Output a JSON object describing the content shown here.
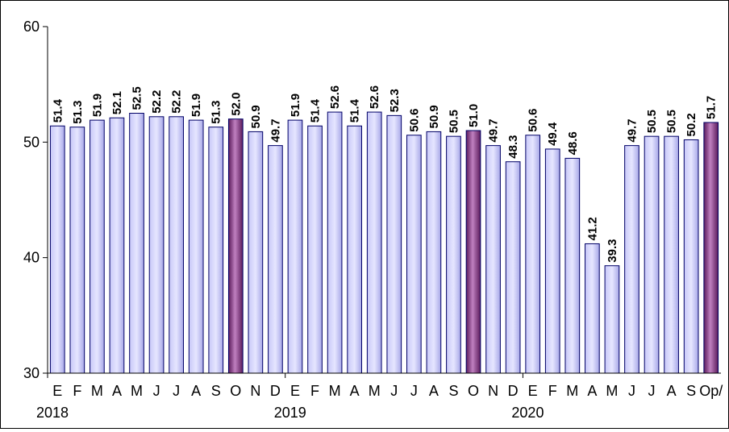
{
  "chart_data": {
    "type": "bar",
    "ylim": [
      30,
      60
    ],
    "yticks": [
      30,
      40,
      50,
      60
    ],
    "grid": false,
    "categories": [
      "E",
      "F",
      "M",
      "A",
      "M",
      "J",
      "J",
      "A",
      "S",
      "O",
      "N",
      "D",
      "E",
      "F",
      "M",
      "A",
      "M",
      "J",
      "J",
      "A",
      "S",
      "O",
      "N",
      "D",
      "E",
      "F",
      "M",
      "A",
      "M",
      "J",
      "J",
      "A",
      "S",
      "Op/"
    ],
    "year_labels": [
      {
        "label": "2018",
        "start_index": 0
      },
      {
        "label": "2019",
        "start_index": 12
      },
      {
        "label": "2020",
        "start_index": 24
      }
    ],
    "values": [
      51.4,
      51.3,
      51.9,
      52.1,
      52.5,
      52.2,
      52.2,
      51.9,
      51.3,
      52.0,
      50.9,
      49.7,
      51.9,
      51.4,
      52.6,
      51.4,
      52.6,
      52.3,
      50.6,
      50.9,
      50.5,
      51.0,
      49.7,
      48.3,
      50.6,
      49.4,
      48.6,
      41.2,
      39.3,
      49.7,
      50.5,
      50.5,
      50.2,
      51.7
    ],
    "data_labels": [
      "51.4",
      "51.3",
      "51.9",
      "52.1",
      "52.5",
      "52.2",
      "52.2",
      "51.9",
      "51.3",
      "52.0",
      "50.9",
      "49.7",
      "51.9",
      "51.4",
      "52.6",
      "51.4",
      "52.6",
      "52.3",
      "50.6",
      "50.9",
      "50.5",
      "51.0",
      "49.7",
      "48.3",
      "50.6",
      "49.4",
      "48.6",
      "41.2",
      "39.3",
      "49.7",
      "50.5",
      "50.5",
      "50.2",
      "51.7"
    ],
    "highlight_indices": [
      9,
      21,
      33
    ],
    "colors": {
      "bar_fill_light": "#e6e6ff",
      "bar_fill_mid": "#c8c8f8",
      "bar_fill_dark": "#a8a8e8",
      "highlight_light": "#c080c0",
      "highlight_dark": "#5a1a5a",
      "bar_stroke": "#000066"
    }
  }
}
